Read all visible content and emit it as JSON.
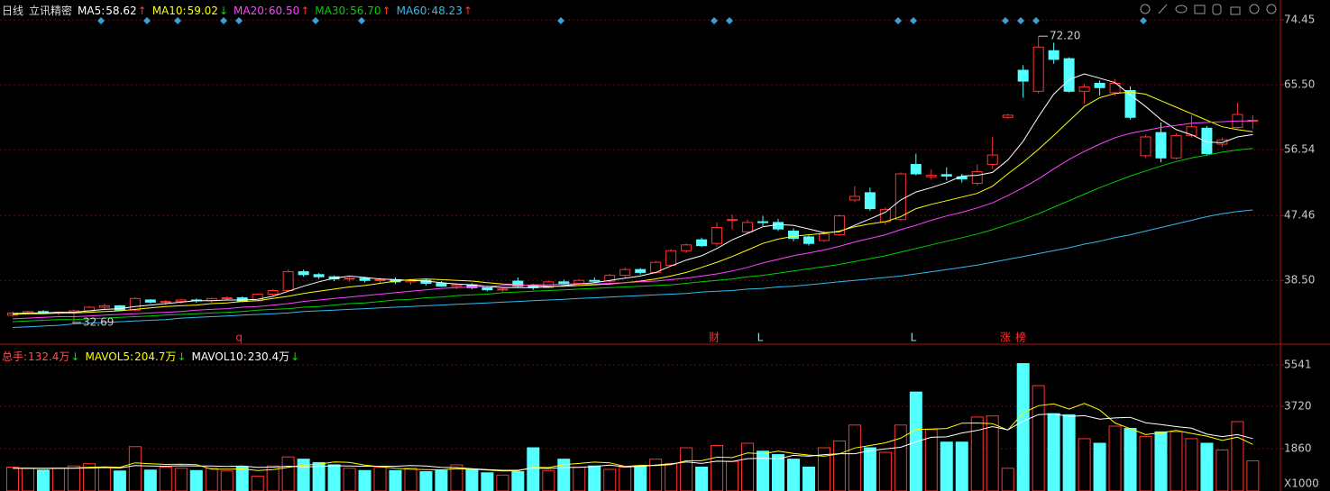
{
  "header": {
    "period": "日线",
    "stock": "立讯精密"
  },
  "chart_data": [
    {
      "type": "candlestick",
      "up_color": "#ff3232",
      "down_color": "#54ffff",
      "grid": true,
      "ylim": [
        30.2,
        76.2
      ],
      "yticks": [
        74.45,
        {
          "value": 65.5,
          "label": "65.50"
        },
        56.54,
        47.46,
        {
          "value": 38.5,
          "label": "38.50"
        }
      ],
      "open": [
        33.7,
        34.0,
        34.2,
        34.0,
        34.1,
        34.3,
        34.8,
        35.0,
        34.4,
        35.8,
        35.5,
        35.6,
        35.8,
        35.7,
        36.0,
        36.1,
        35.7,
        36.6,
        37.1,
        39.7,
        39.3,
        39.0,
        38.7,
        38.8,
        38.5,
        38.6,
        38.3,
        38.5,
        38.1,
        37.7,
        37.9,
        37.5,
        37.2,
        38.4,
        37.7,
        37.5,
        38.3,
        38.1,
        38.5,
        38.4,
        39.2,
        40.0,
        39.6,
        40.6,
        42.6,
        44.1,
        43.6,
        46.8,
        45.2,
        46.6,
        46.5,
        45.3,
        44.5,
        44.0,
        44.8,
        49.6,
        50.6,
        46.6,
        46.9,
        54.5,
        52.8,
        53.1,
        52.8,
        51.9,
        54.5,
        61.0,
        67.5,
        64.6,
        70.2,
        69.1,
        64.6,
        65.7,
        64.4,
        64.7,
        55.7,
        58.9,
        55.4,
        58.5,
        59.5,
        57.3,
        59.6,
        60.6
      ],
      "high": [
        34.2,
        34.3,
        34.4,
        34.2,
        34.5,
        35.0,
        35.3,
        35.1,
        36.2,
        35.9,
        35.8,
        35.9,
        36.0,
        36.1,
        36.3,
        36.3,
        36.7,
        37.3,
        40.0,
        40.0,
        39.5,
        39.2,
        39.0,
        39.0,
        38.9,
        38.9,
        38.7,
        38.7,
        38.4,
        38.1,
        38.1,
        37.8,
        37.5,
        38.9,
        38.0,
        38.5,
        38.6,
        38.7,
        38.9,
        39.4,
        40.3,
        40.2,
        41.2,
        42.8,
        43.6,
        44.4,
        46.5,
        47.6,
        46.9,
        47.4,
        47.0,
        45.7,
        44.7,
        45.3,
        47.6,
        51.5,
        51.3,
        48.6,
        53.4,
        56.0,
        53.8,
        54.1,
        53.2,
        54.5,
        58.3,
        61.5,
        68.2,
        72.2,
        71.3,
        69.3,
        65.6,
        66.1,
        66.3,
        65.3,
        58.6,
        60.3,
        58.8,
        61.3,
        59.8,
        58.2,
        63.0,
        61.3
      ],
      "low": [
        33.5,
        33.8,
        33.9,
        33.7,
        32.69,
        34.2,
        34.5,
        34.3,
        34.2,
        35.3,
        35.1,
        35.3,
        35.4,
        35.4,
        35.7,
        35.5,
        35.6,
        36.4,
        37.0,
        39.0,
        38.7,
        38.4,
        38.3,
        38.2,
        38.1,
        38.0,
        37.9,
        37.8,
        37.6,
        37.3,
        37.3,
        37.0,
        36.8,
        37.5,
        37.2,
        37.4,
        37.9,
        37.9,
        38.2,
        38.2,
        38.9,
        39.3,
        39.4,
        40.4,
        42.3,
        43.1,
        43.2,
        45.5,
        45.0,
        46.0,
        45.3,
        43.9,
        43.3,
        43.8,
        44.6,
        49.3,
        48.1,
        46.2,
        46.7,
        53.0,
        52.4,
        52.3,
        52.0,
        51.6,
        53.9,
        60.8,
        63.7,
        64.3,
        68.4,
        64.4,
        62.9,
        64.0,
        64.0,
        60.7,
        55.4,
        54.8,
        55.2,
        58.2,
        55.7,
        56.9,
        59.4,
        59.4
      ],
      "close": [
        34.0,
        34.2,
        34.0,
        34.1,
        34.3,
        34.8,
        35.0,
        34.4,
        36.0,
        35.5,
        35.6,
        35.8,
        35.7,
        36.0,
        36.1,
        35.6,
        36.6,
        37.1,
        39.7,
        39.3,
        39.0,
        38.7,
        38.8,
        38.5,
        38.6,
        38.3,
        38.5,
        38.1,
        37.7,
        37.9,
        37.5,
        37.2,
        37.3,
        37.7,
        37.5,
        38.3,
        38.1,
        38.5,
        38.4,
        39.2,
        40.0,
        39.6,
        41.0,
        42.6,
        43.4,
        43.3,
        45.8,
        46.9,
        46.5,
        46.5,
        45.6,
        44.3,
        43.6,
        44.9,
        47.4,
        50.1,
        48.4,
        48.3,
        53.2,
        53.2,
        53.0,
        52.9,
        52.5,
        53.5,
        55.8,
        61.3,
        66.0,
        70.7,
        69.0,
        64.6,
        65.2,
        65.1,
        65.7,
        61.0,
        58.3,
        55.4,
        58.5,
        59.7,
        56.0,
        57.9,
        61.4,
        60.6
      ],
      "series": [
        {
          "name": "MA5:",
          "label": "58.62",
          "trend": "↑",
          "trend_color": "#ff3232",
          "color": "#ffffff",
          "values": [
            33.9,
            34.0,
            34.0,
            34.1,
            34.1,
            34.3,
            34.5,
            34.6,
            34.9,
            35.1,
            35.3,
            35.5,
            35.7,
            35.7,
            35.8,
            35.8,
            35.9,
            36.3,
            37.0,
            37.7,
            38.3,
            38.8,
            39.1,
            38.9,
            38.7,
            38.6,
            38.5,
            38.4,
            38.2,
            38.0,
            37.9,
            37.7,
            37.5,
            37.5,
            37.5,
            37.6,
            37.8,
            38.0,
            38.2,
            38.5,
            38.8,
            39.1,
            39.6,
            40.5,
            41.3,
            41.9,
            42.9,
            44.1,
            45.0,
            45.9,
            46.2,
            46.1,
            45.6,
            45.1,
            45.2,
            46.1,
            47.0,
            47.9,
            49.6,
            50.7,
            51.3,
            52.0,
            52.9,
            53.0,
            53.4,
            55.1,
            57.7,
            61.1,
            64.2,
            66.2,
            67.0,
            66.4,
            65.8,
            64.1,
            62.5,
            60.7,
            59.3,
            58.6,
            57.6,
            57.5,
            58.3,
            58.62
          ]
        },
        {
          "name": "MA10:",
          "label": "59.02",
          "trend": "↓",
          "trend_color": "#00e000",
          "color": "#ffff00",
          "values": [
            33.8,
            33.9,
            33.9,
            34.0,
            34.0,
            34.1,
            34.2,
            34.3,
            34.5,
            34.7,
            34.9,
            35.0,
            35.1,
            35.3,
            35.4,
            35.6,
            35.7,
            36.0,
            36.3,
            36.7,
            37.0,
            37.3,
            37.6,
            37.8,
            38.1,
            38.4,
            38.6,
            38.7,
            38.6,
            38.5,
            38.4,
            38.2,
            38.0,
            37.9,
            37.8,
            37.7,
            37.7,
            37.8,
            37.9,
            38.0,
            38.2,
            38.4,
            38.7,
            39.1,
            39.6,
            40.3,
            41.0,
            41.8,
            42.7,
            43.6,
            44.2,
            44.6,
            44.8,
            45.0,
            45.3,
            45.9,
            46.3,
            46.6,
            47.3,
            48.4,
            49.0,
            49.5,
            50.0,
            50.5,
            51.5,
            53.2,
            54.8,
            56.6,
            58.5,
            60.5,
            62.5,
            63.7,
            64.3,
            64.5,
            64.2,
            63.3,
            62.4,
            61.5,
            60.6,
            59.7,
            59.3,
            59.02
          ]
        },
        {
          "name": "MA20:",
          "label": "60.50",
          "trend": "↑",
          "trend_color": "#ff3232",
          "color": "#ff44ff",
          "values": [
            33.2,
            33.3,
            33.4,
            33.5,
            33.5,
            33.6,
            33.7,
            33.8,
            33.9,
            34.0,
            34.1,
            34.2,
            34.4,
            34.5,
            34.6,
            34.8,
            34.9,
            35.1,
            35.3,
            35.6,
            35.8,
            36.0,
            36.2,
            36.4,
            36.6,
            36.8,
            37.0,
            37.2,
            37.4,
            37.5,
            37.6,
            37.7,
            37.8,
            37.8,
            37.9,
            37.9,
            38.0,
            38.0,
            38.0,
            38.1,
            38.2,
            38.3,
            38.4,
            38.6,
            38.8,
            39.1,
            39.4,
            39.8,
            40.3,
            40.9,
            41.4,
            41.9,
            42.3,
            42.7,
            43.2,
            43.8,
            44.3,
            44.8,
            45.5,
            46.1,
            46.8,
            47.4,
            47.9,
            48.5,
            49.2,
            50.2,
            51.3,
            52.5,
            53.9,
            55.2,
            56.3,
            57.3,
            58.2,
            58.8,
            59.2,
            59.6,
            59.9,
            60.2,
            60.3,
            60.4,
            60.5,
            60.5
          ]
        },
        {
          "name": "MA30:",
          "label": "56.70",
          "trend": "↑",
          "trend_color": "#ff3232",
          "color": "#00d000",
          "values": [
            32.8,
            32.9,
            33.0,
            33.1,
            33.1,
            33.2,
            33.3,
            33.4,
            33.5,
            33.6,
            33.7,
            33.8,
            33.9,
            34.0,
            34.1,
            34.2,
            34.4,
            34.5,
            34.6,
            34.8,
            34.9,
            35.1,
            35.3,
            35.4,
            35.6,
            35.8,
            35.9,
            36.1,
            36.2,
            36.4,
            36.5,
            36.6,
            36.8,
            36.9,
            37.0,
            37.1,
            37.2,
            37.3,
            37.4,
            37.5,
            37.6,
            37.7,
            37.8,
            37.9,
            38.1,
            38.3,
            38.5,
            38.7,
            39.0,
            39.2,
            39.5,
            39.8,
            40.1,
            40.4,
            40.7,
            41.1,
            41.5,
            41.9,
            42.4,
            42.9,
            43.4,
            43.9,
            44.4,
            44.9,
            45.5,
            46.2,
            46.9,
            47.7,
            48.6,
            49.5,
            50.4,
            51.3,
            52.1,
            52.9,
            53.6,
            54.3,
            54.9,
            55.4,
            55.8,
            56.2,
            56.5,
            56.7
          ]
        },
        {
          "name": "MA60:",
          "label": "48.23",
          "trend": "↑",
          "trend_color": "#ff3232",
          "color": "#33bbee",
          "values": [
            32.0,
            32.1,
            32.2,
            32.3,
            32.5,
            32.6,
            32.7,
            32.8,
            32.9,
            33.0,
            33.1,
            33.3,
            33.4,
            33.5,
            33.6,
            33.7,
            33.8,
            33.9,
            34.0,
            34.2,
            34.3,
            34.4,
            34.5,
            34.6,
            34.7,
            34.8,
            34.9,
            35.0,
            35.1,
            35.2,
            35.3,
            35.4,
            35.5,
            35.6,
            35.7,
            35.8,
            35.9,
            36.0,
            36.1,
            36.2,
            36.3,
            36.4,
            36.5,
            36.6,
            36.7,
            36.9,
            37.0,
            37.1,
            37.3,
            37.4,
            37.6,
            37.7,
            37.9,
            38.1,
            38.3,
            38.5,
            38.7,
            38.9,
            39.1,
            39.4,
            39.7,
            40.0,
            40.3,
            40.6,
            41.0,
            41.4,
            41.8,
            42.2,
            42.6,
            43.0,
            43.5,
            43.9,
            44.4,
            44.8,
            45.3,
            45.8,
            46.3,
            46.8,
            47.3,
            47.7,
            48.0,
            48.23
          ]
        }
      ],
      "annotations": [
        {
          "value": 72.2,
          "label": "72.20"
        },
        {
          "value": 32.69,
          "label": "32.69"
        }
      ],
      "events": [
        "q",
        "财",
        "L",
        "L",
        "涨",
        "榜"
      ]
    },
    {
      "type": "bar",
      "grid": true,
      "ylim": [
        0,
        5940
      ],
      "yticks": [
        5541,
        3720,
        1860
      ],
      "unit_label": "X1000",
      "total": {
        "name": "总手:",
        "label": "132.4万",
        "trend": "↓",
        "trend_color": "#00e000",
        "color": "#ff5050"
      },
      "values": [
        1050,
        1000,
        920,
        1000,
        1100,
        1200,
        1050,
        880,
        1950,
        920,
        1050,
        1000,
        900,
        1000,
        880,
        1050,
        650,
        1100,
        1500,
        1400,
        1250,
        1150,
        1000,
        900,
        1050,
        900,
        1000,
        850,
        900,
        1150,
        950,
        800,
        700,
        850,
        1900,
        900,
        1400,
        1050,
        1100,
        950,
        1050,
        1100,
        1400,
        1200,
        1900,
        1050,
        2000,
        1300,
        2100,
        1750,
        1600,
        1400,
        1050,
        1900,
        2200,
        2900,
        1900,
        1700,
        2900,
        4350,
        2700,
        2150,
        2150,
        3250,
        3300,
        1000,
        5600,
        4630,
        3400,
        3350,
        2300,
        2100,
        2850,
        2750,
        2400,
        2600,
        2600,
        2300,
        2100,
        1800,
        3050,
        1324
      ],
      "series": [
        {
          "name": "MAVOL5:",
          "label": "204.7万",
          "trend": "↓",
          "trend_color": "#00e000",
          "color": "#ffff00",
          "values": [
            1000,
            1000,
            990,
            1000,
            1010,
            1040,
            1060,
            1040,
            1240,
            1200,
            1170,
            1180,
            1160,
            960,
            960,
            970,
            900,
            940,
            1040,
            1140,
            1180,
            1280,
            1260,
            1140,
            1070,
            1000,
            960,
            940,
            930,
            980,
            960,
            920,
            880,
            890,
            1040,
            1030,
            1160,
            1210,
            1270,
            1240,
            1080,
            1130,
            1120,
            1160,
            1330,
            1330,
            1490,
            1470,
            1670,
            1640,
            1750,
            1650,
            1580,
            1530,
            1630,
            1890,
            2000,
            2120,
            2320,
            2700,
            2720,
            2750,
            2980,
            2990,
            2960,
            2680,
            3430,
            3750,
            3830,
            3600,
            3850,
            3560,
            2990,
            2740,
            2480,
            2560,
            2660,
            2530,
            2410,
            2220,
            2370,
            2047
          ]
        },
        {
          "name": "MAVOL10:",
          "label": "230.4万",
          "trend": "↓",
          "trend_color": "#00e000",
          "color": "#ffffff",
          "values": [
            1000,
            1000,
            1000,
            1000,
            1000,
            1010,
            1030,
            1010,
            1120,
            1100,
            1090,
            1110,
            1100,
            1100,
            1080,
            1100,
            1040,
            1050,
            1090,
            1060,
            1080,
            1110,
            1100,
            1090,
            1090,
            1090,
            1120,
            1100,
            1040,
            1030,
            980,
            940,
            910,
            910,
            1010,
            990,
            1030,
            1040,
            1080,
            1140,
            1060,
            1080,
            1140,
            1190,
            1280,
            1210,
            1310,
            1300,
            1420,
            1440,
            1410,
            1570,
            1530,
            1600,
            1640,
            1640,
            1770,
            1850,
            1920,
            2160,
            2360,
            2380,
            2550,
            2660,
            2830,
            2690,
            3070,
            3360,
            3390,
            3280,
            3310,
            3160,
            3210,
            3240,
            3000,
            2920,
            2830,
            2760,
            2500,
            2390,
            2480,
            2304
          ]
        }
      ]
    }
  ]
}
